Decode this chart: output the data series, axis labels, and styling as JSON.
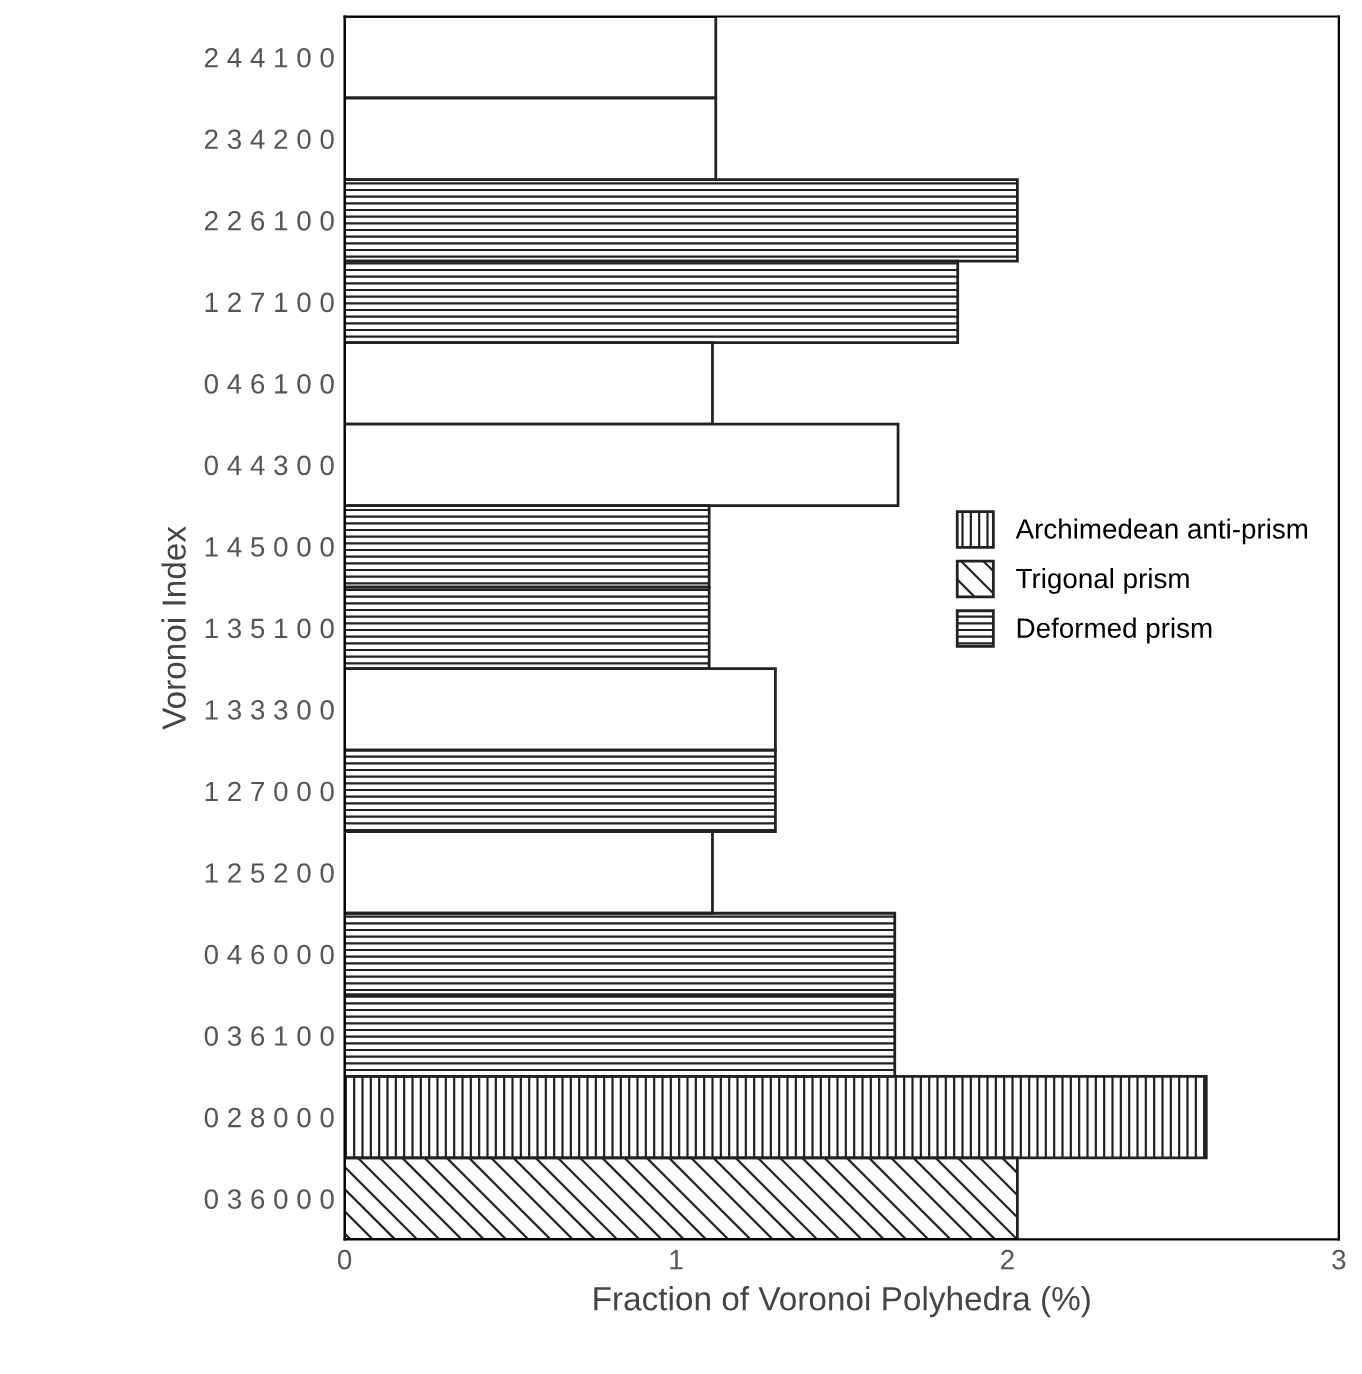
{
  "chart_data": {
    "type": "bar",
    "orientation": "horizontal",
    "xlabel": "Fraction of Voronoi Polyhedra (%)",
    "ylabel": "Voronoi Index",
    "categories": [
      "2 4 4 1 0 0",
      "2 3 4 2 0 0",
      "2 2 6 1 0 0",
      "1 2 7 1 0 0",
      "0 4 6 1 0 0",
      "0 4 4 3 0 0",
      "1 4 5 0 0 0",
      "1 3 5 1 0 0",
      "1 3 3 3 0 0",
      "1 2 7 0 0 0",
      "1 2 5 2 0 0",
      "0 4 6 0 0 0",
      "0 3 6 1 0 0",
      "0 2 8 0 0 0",
      "0 3 6 0 0 0"
    ],
    "series": [
      {
        "color": "#ffffff",
        "values": [
          1.12,
          1.12,
          null,
          null,
          1.11,
          1.67,
          null,
          null,
          1.3,
          null,
          1.11,
          null,
          null,
          null,
          null
        ]
      },
      {
        "name": "Archimedean anti-prism",
        "color": "#222222",
        "values": [
          null,
          null,
          null,
          null,
          null,
          null,
          null,
          null,
          null,
          null,
          null,
          null,
          null,
          2.6,
          null
        ]
      },
      {
        "name": "Trigonal prism",
        "color": "#222222",
        "values": [
          null,
          null,
          null,
          null,
          null,
          null,
          null,
          null,
          null,
          null,
          null,
          null,
          null,
          null,
          2.03
        ]
      },
      {
        "name": "Deformed prism",
        "color": "#222222",
        "values": [
          null,
          null,
          2.03,
          1.85,
          null,
          null,
          1.1,
          1.1,
          null,
          1.3,
          null,
          1.66,
          1.66,
          null,
          null
        ]
      }
    ],
    "xlim": [
      0,
      3
    ],
    "xticks": [
      0,
      1,
      2,
      3
    ],
    "legend": "right",
    "grid": false
  }
}
